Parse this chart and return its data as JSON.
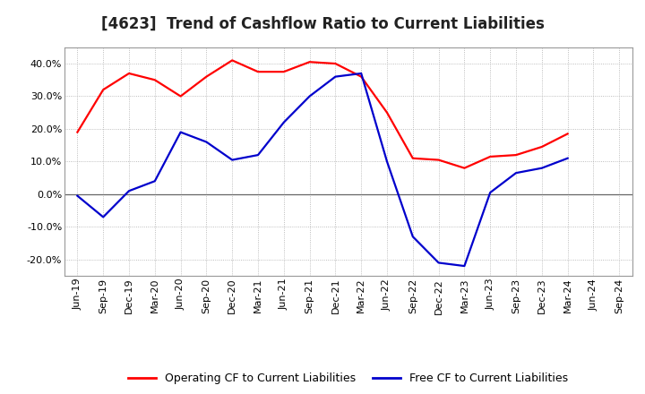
{
  "title": "[4623]  Trend of Cashflow Ratio to Current Liabilities",
  "x_labels": [
    "Jun-19",
    "Sep-19",
    "Dec-19",
    "Mar-20",
    "Jun-20",
    "Sep-20",
    "Dec-20",
    "Mar-21",
    "Jun-21",
    "Sep-21",
    "Dec-21",
    "Mar-22",
    "Jun-22",
    "Sep-22",
    "Dec-22",
    "Mar-23",
    "Jun-23",
    "Sep-23",
    "Dec-23",
    "Mar-24",
    "Jun-24",
    "Sep-24"
  ],
  "operating_cf": [
    19.0,
    32.0,
    37.0,
    35.0,
    30.0,
    36.0,
    41.0,
    37.5,
    37.5,
    40.5,
    40.0,
    36.0,
    25.0,
    11.0,
    10.5,
    8.0,
    11.5,
    12.0,
    14.5,
    18.5,
    null,
    null
  ],
  "free_cf": [
    -0.5,
    -7.0,
    1.0,
    4.0,
    19.0,
    16.0,
    10.5,
    12.0,
    22.0,
    30.0,
    36.0,
    37.0,
    10.0,
    -13.0,
    -21.0,
    -22.0,
    0.5,
    6.5,
    8.0,
    11.0,
    null,
    null
  ],
  "ylim": [
    -25,
    45
  ],
  "yticks": [
    -20.0,
    -10.0,
    0.0,
    10.0,
    20.0,
    30.0,
    40.0
  ],
  "operating_color": "#ff0000",
  "free_color": "#0000cc",
  "background_color": "#ffffff",
  "plot_bg_color": "#ffffff",
  "grid_color": "#aaaaaa",
  "title_fontsize": 12,
  "legend_fontsize": 9,
  "axis_fontsize": 8
}
